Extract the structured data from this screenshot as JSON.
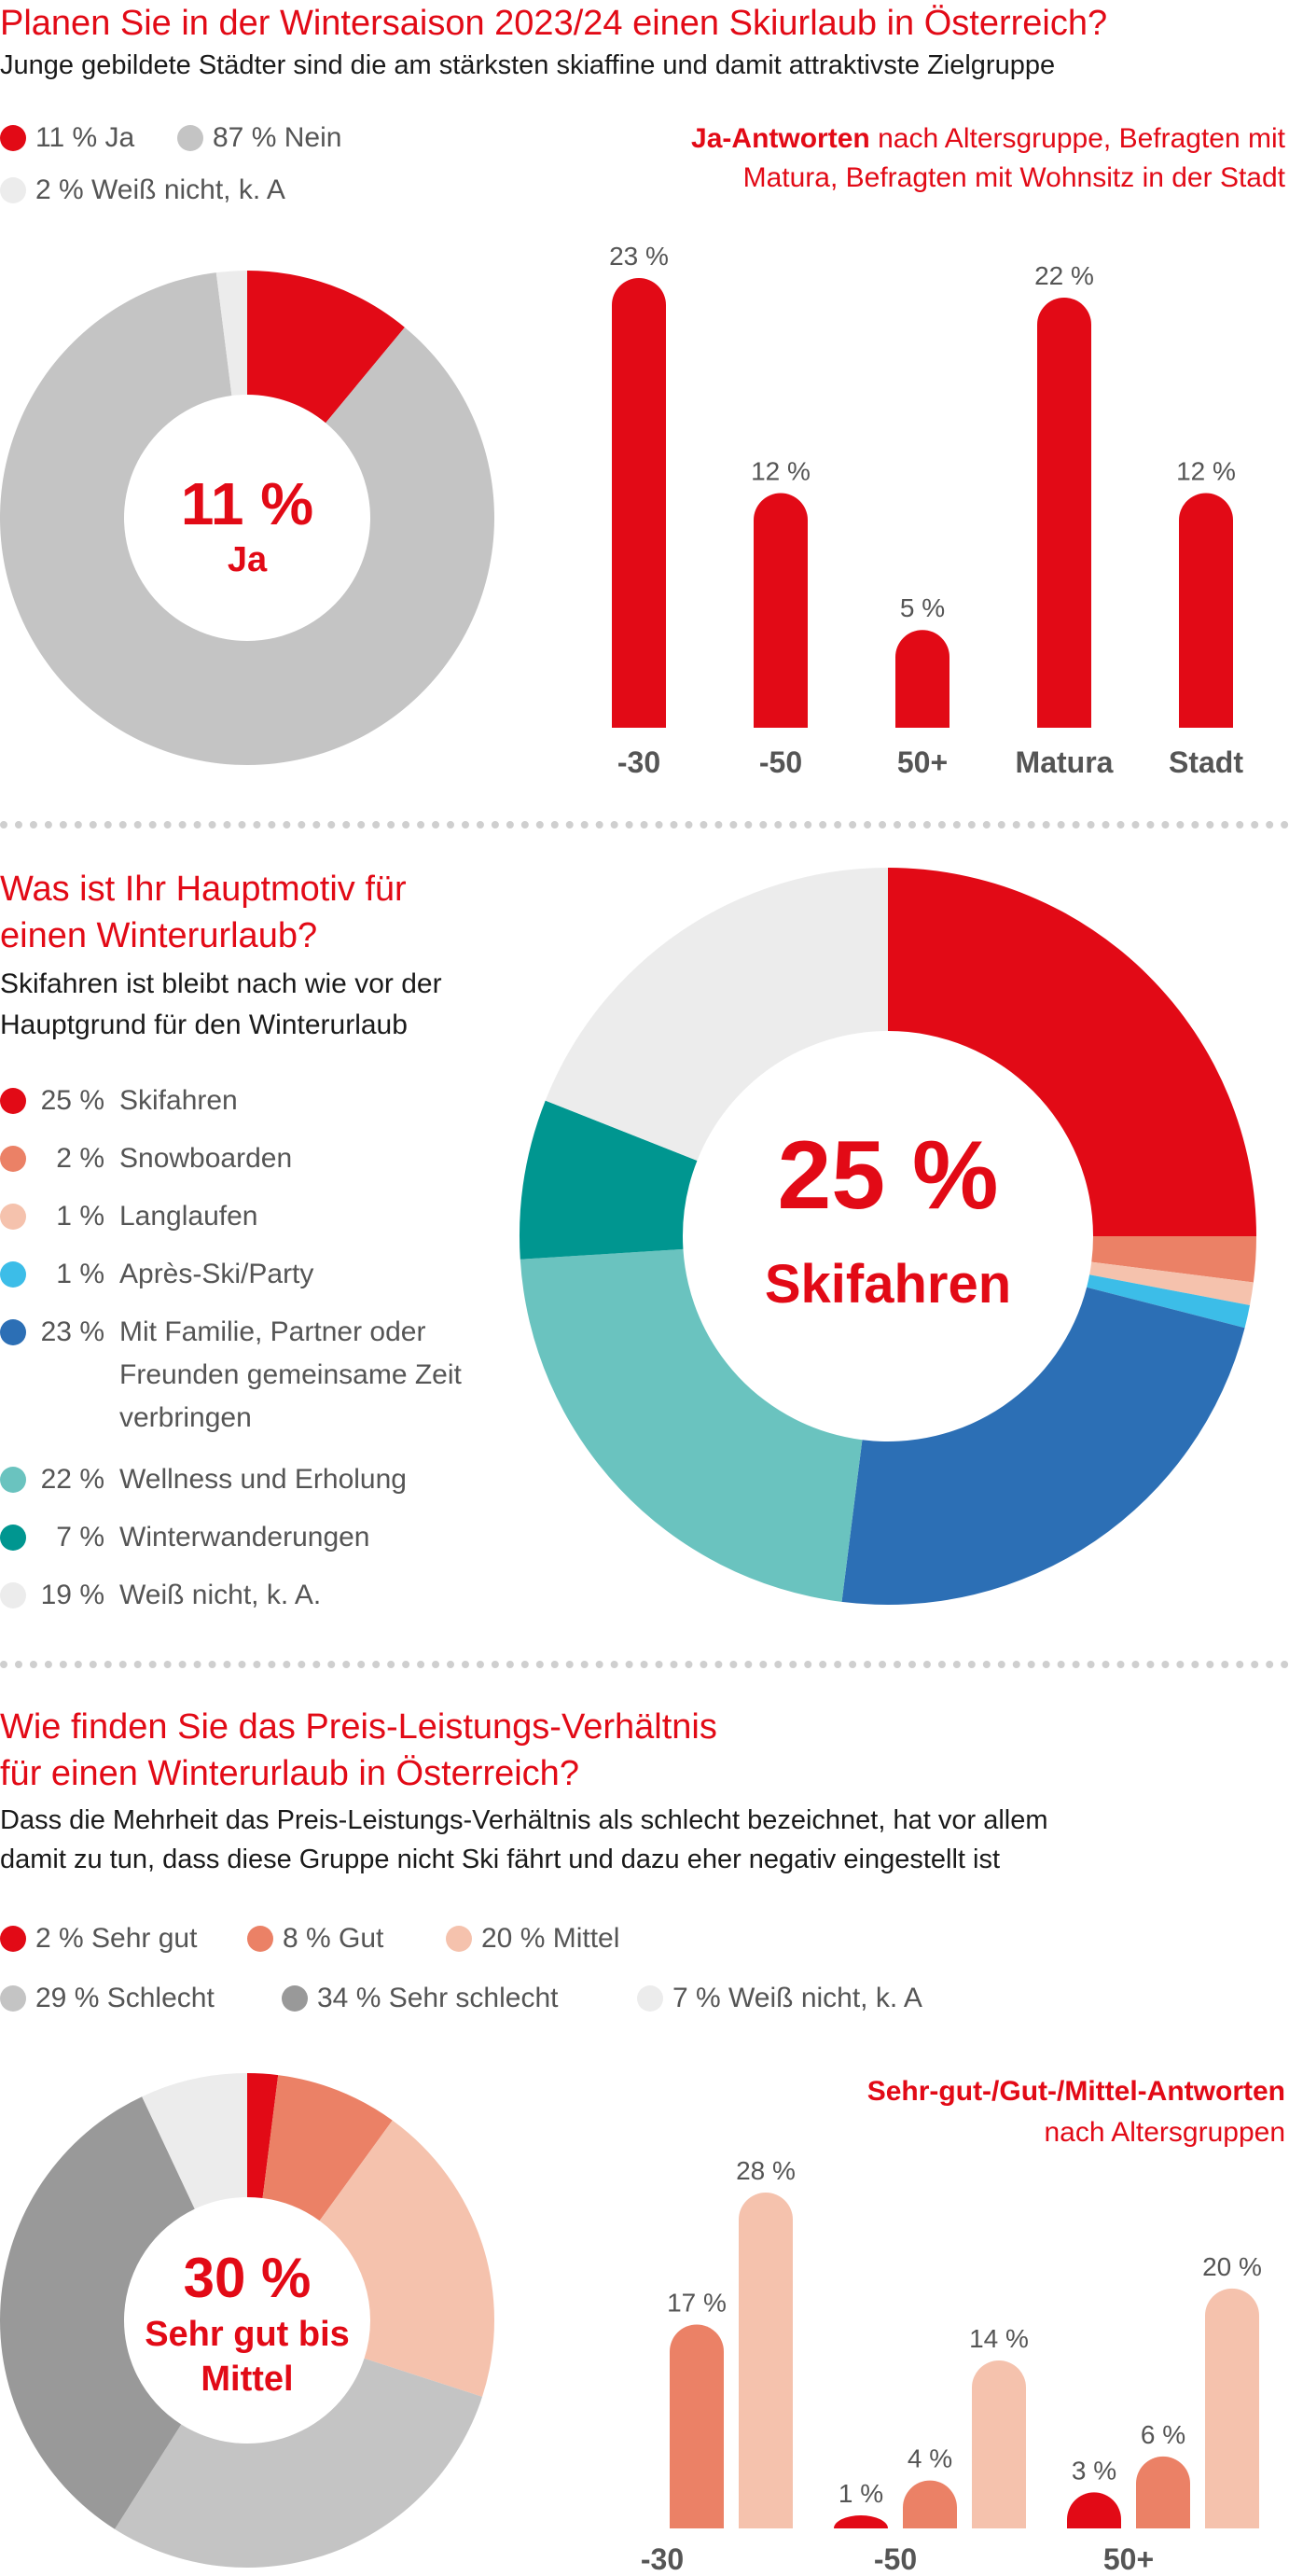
{
  "section1": {
    "title": "Planen Sie in der Wintersaison 2023/24 einen Skiurlaub in Österreich?",
    "subtitle": "Junge gebildete Städter sind die am stärksten skiaffine und damit attraktivste Zielgruppe",
    "legend": [
      {
        "label": "11 % Ja",
        "color": "#e20a16"
      },
      {
        "label": "87 % Nein",
        "color": "#c4c4c4"
      },
      {
        "label": "2 % Weiß nicht, k. A",
        "color": "#ececec"
      }
    ],
    "bar_heading_bold": "Ja-Antworten",
    "bar_heading_rest1": " nach Altersgruppe, Befragten mit",
    "bar_heading_line2": "Matura, Befragten mit Wohnsitz in der Stadt",
    "donut_center_value": "11 %",
    "donut_center_label": "Ja"
  },
  "section2": {
    "title_line1": "Was ist Ihr Hauptmotiv für",
    "title_line2": "einen Winterurlaub?",
    "subtitle_line1": "Skifahren ist bleibt nach wie vor der",
    "subtitle_line2": "Hauptgrund für den Winterurlaub",
    "legend": [
      {
        "pct": "25 %",
        "label": "Skifahren",
        "color": "#e20a16"
      },
      {
        "pct": "2 %",
        "label": "Snowboarden",
        "color": "#eb8166"
      },
      {
        "pct": "1 %",
        "label": "Langlaufen",
        "color": "#f5c2ad"
      },
      {
        "pct": "1 %",
        "label": "Après-Ski/Party",
        "color": "#3cbde8"
      },
      {
        "pct": "23 %",
        "label": "Mit Familie, Partner oder Freunden gemeinsame Zeit verbringen",
        "color": "#2c6fb5"
      },
      {
        "pct": "22 %",
        "label": "Wellness und Erholung",
        "color": "#6ac3bf"
      },
      {
        "pct": "7 %",
        "label": "Winterwanderungen",
        "color": "#009690"
      },
      {
        "pct": "19 %",
        "label": "Weiß nicht, k. A.",
        "color": "#ececec"
      }
    ],
    "donut_center_value": "25 %",
    "donut_center_label": "Skifahren"
  },
  "section3": {
    "title_line1": "Wie finden Sie das Preis-Leistungs-Verhältnis",
    "title_line2": "für einen Winterurlaub in Österreich?",
    "subtitle_line1": "Dass die Mehrheit das Preis-Leistungs-Verhältnis als schlecht bezeichnet, hat vor allem",
    "subtitle_line2": "damit zu tun, dass diese Gruppe nicht Ski fährt und dazu eher negativ eingestellt ist",
    "legend_row1": [
      {
        "label": "2 % Sehr gut",
        "color": "#e20a16"
      },
      {
        "label": "8 % Gut",
        "color": "#eb8166"
      },
      {
        "label": "20 % Mittel",
        "color": "#f5c2ad"
      }
    ],
    "legend_row2": [
      {
        "label": "29 % Schlecht",
        "color": "#c4c4c4"
      },
      {
        "label": "34 % Sehr schlecht",
        "color": "#999999"
      },
      {
        "label": "7 % Weiß nicht, k. A",
        "color": "#ececec"
      }
    ],
    "bar_heading_line1": "Sehr-gut-/Gut-/Mittel-Antworten",
    "bar_heading_line2": "nach Altersgruppen",
    "donut_center_value": "30 %",
    "donut_center_line2": "Sehr gut bis",
    "donut_center_line3": "Mittel"
  },
  "chart_data": [
    {
      "type": "pie",
      "categories": [
        "Ja",
        "Nein",
        "Weiß nicht, k. A"
      ],
      "values": [
        11,
        87,
        2
      ],
      "colors": [
        "#e20a16",
        "#c4c4c4",
        "#ececec"
      ]
    },
    {
      "type": "bar",
      "categories": [
        "-30",
        "-50",
        "50+",
        "Matura",
        "Stadt"
      ],
      "values": [
        23,
        12,
        5,
        22,
        12
      ],
      "value_labels": [
        "23 %",
        "12 %",
        "5 %",
        "22 %",
        "12 %"
      ],
      "color": "#e20a16",
      "ylim": [
        0,
        25
      ]
    },
    {
      "type": "pie",
      "categories": [
        "Skifahren",
        "Snowboarden",
        "Langlaufen",
        "Après-Ski/Party",
        "Mit Familie, Partner oder Freunden gemeinsame Zeit verbringen",
        "Wellness und Erholung",
        "Winterwanderungen",
        "Weiß nicht, k. A."
      ],
      "values": [
        25,
        2,
        1,
        1,
        23,
        22,
        7,
        19
      ],
      "colors": [
        "#e20a16",
        "#eb8166",
        "#f5c2ad",
        "#3cbde8",
        "#2c6fb5",
        "#6ac3bf",
        "#009690",
        "#ececec"
      ]
    },
    {
      "type": "pie",
      "categories": [
        "Sehr gut",
        "Gut",
        "Mittel",
        "Schlecht",
        "Sehr schlecht",
        "Weiß nicht, k. A"
      ],
      "values": [
        2,
        8,
        20,
        29,
        34,
        7
      ],
      "colors": [
        "#e20a16",
        "#eb8166",
        "#f5c2ad",
        "#c4c4c4",
        "#999999",
        "#ececec"
      ]
    },
    {
      "type": "bar",
      "categories": [
        "-30",
        "-50",
        "50+"
      ],
      "series": [
        {
          "name": "Sehr gut",
          "values": [
            null,
            1,
            3
          ],
          "value_labels": [
            "",
            "1 %",
            "3 %"
          ],
          "color": "#e20a16"
        },
        {
          "name": "Gut",
          "values": [
            17,
            4,
            6
          ],
          "value_labels": [
            "17 %",
            "4 %",
            "6 %"
          ],
          "color": "#eb8166"
        },
        {
          "name": "Mittel",
          "values": [
            28,
            14,
            20
          ],
          "value_labels": [
            "28 %",
            "14 %",
            "20 %"
          ],
          "color": "#f5c2ad"
        }
      ],
      "ylim": [
        0,
        30
      ]
    }
  ]
}
